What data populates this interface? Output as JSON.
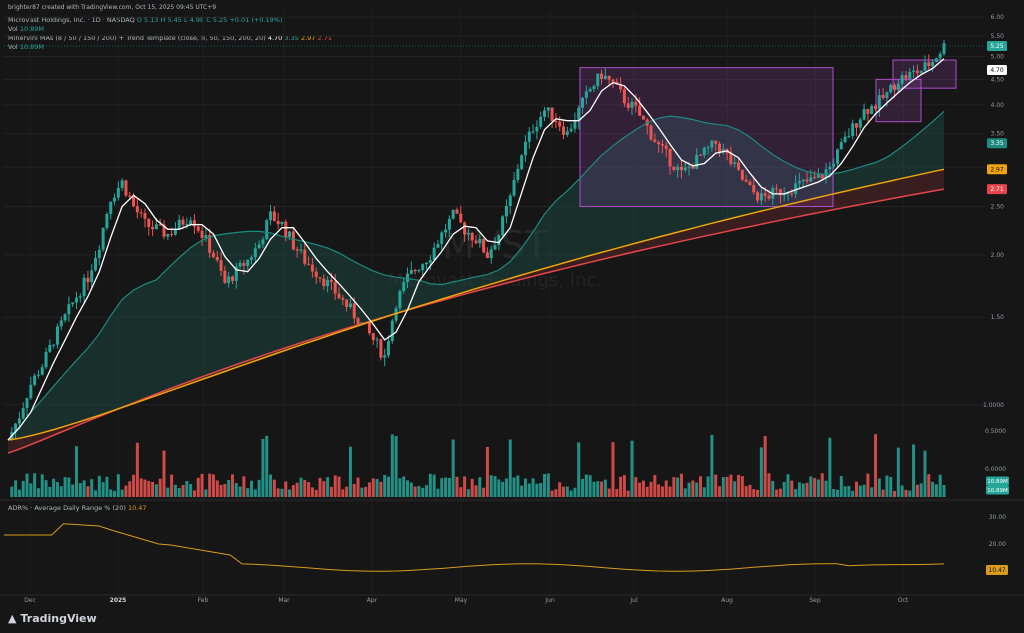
{
  "topbar": {
    "text": "brighter87 created with TradingView.com, Oct 15, 2025 09:45 UTC+9"
  },
  "legend": {
    "symbol": "Microvast Holdings, Inc. · 1D · NASDAQ",
    "ohlc": "O 5.13  H 5.45  L 4.98  C 5.25  +0.01 (+0.19%)",
    "vol_label": "Vol",
    "vol_value": "10.89M",
    "ma_label": "Minervini MAs (8 / 50 / 150 / 200) + Trend Template (close, 8, 50, 150, 200, 20)",
    "ma_v1": "4.70",
    "ma_v2": "3.35",
    "ma_v3": "2.97",
    "ma_v4": "2.71"
  },
  "watermark": {
    "ticker": "MVST",
    "name": "Microvast Holdings, Inc."
  },
  "adr": {
    "label": "ADR% · Average Daily Range % (20)",
    "value": "10.47"
  },
  "colors": {
    "up": "#26a69a",
    "down": "#ef5350",
    "ma8": "#ffffff",
    "ma50": "#1c8a7f",
    "ma150": "#f0a30a",
    "ma200": "#e8454a",
    "box": "#b04dcc",
    "adr": "#d89b1b"
  },
  "chart_data": {
    "type": "candlestick",
    "price_axis": [
      "6.00",
      "5.50",
      "5.00",
      "4.50",
      "4.00",
      "3.50",
      "3.00",
      "2.50",
      "2.00",
      "1.50",
      "1.0000"
    ],
    "volume_axis": [
      "0.5000",
      "0.0000"
    ],
    "adr_axis": [
      "30.00",
      "20.00"
    ],
    "x_labels": [
      "Dec",
      "2025",
      "Feb",
      "Mar",
      "Apr",
      "May",
      "Jun",
      "Jul",
      "Aug",
      "Sep",
      "Oct"
    ],
    "price_tags": [
      "5.25",
      "4.70",
      "3.35",
      "2.97",
      "2.71"
    ],
    "volume_tags": [
      "10.89M",
      "10.89M"
    ],
    "adr_tag": "10.47",
    "close_series": [
      0.85,
      0.95,
      1.1,
      1.2,
      1.35,
      1.5,
      1.65,
      1.8,
      2.1,
      2.6,
      2.8,
      2.5,
      2.3,
      2.25,
      2.2,
      2.3,
      2.4,
      2.2,
      2.0,
      1.75,
      1.85,
      1.95,
      2.1,
      2.4,
      2.3,
      2.1,
      1.95,
      1.85,
      1.75,
      1.65,
      1.55,
      1.45,
      1.35,
      1.25,
      1.6,
      1.8,
      1.9,
      2.0,
      2.2,
      2.4,
      2.25,
      2.15,
      2.0,
      2.2,
      2.6,
      3.2,
      3.6,
      3.9,
      3.75,
      3.5,
      3.9,
      4.3,
      4.6,
      4.4,
      4.1,
      3.9,
      3.6,
      3.3,
      3.1,
      2.9,
      3.05,
      3.2,
      3.35,
      3.15,
      2.9,
      2.7,
      2.6,
      2.65,
      2.7,
      2.75,
      2.8,
      2.85,
      3.0,
      3.3,
      3.6,
      3.9,
      4.0,
      4.2,
      4.5,
      4.6,
      4.7,
      4.9,
      5.25
    ]
  }
}
